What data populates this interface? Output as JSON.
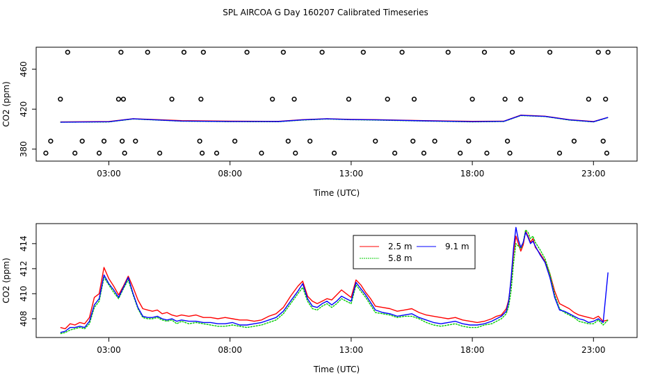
{
  "figure_title": "SPL AIRCOA G  Day 160207  Calibrated Timeseries",
  "chart_data": [
    {
      "type": "scatter+line",
      "xlabel": "Time (UTC)",
      "ylabel": "CO2 (ppm)",
      "xlim": [
        0.0,
        24.8
      ],
      "ylim": [
        368,
        482
      ],
      "x_ticks": [
        3,
        8,
        13,
        18,
        23
      ],
      "x_tick_labels": [
        "03:00",
        "08:00",
        "13:00",
        "18:00",
        "23:00"
      ],
      "y_ticks": [
        380,
        420,
        460
      ],
      "y_tick_labels": [
        "380",
        "420",
        "460"
      ],
      "calibration_points": {
        "hours": [
          0.4,
          0.6,
          1.0,
          1.3,
          1.6,
          1.9,
          2.6,
          2.8,
          3.4,
          3.5,
          3.55,
          3.6,
          3.65,
          4.1,
          4.6,
          5.1,
          5.6,
          6.1,
          6.75,
          6.8,
          6.85,
          6.9,
          7.45,
          8.2,
          8.7,
          9.3,
          9.75,
          10.2,
          10.4,
          10.65,
          10.7,
          11.3,
          11.8,
          12.3,
          12.9,
          13.5,
          14.0,
          14.5,
          14.8,
          15.1,
          15.55,
          15.6,
          16.0,
          16.45,
          17.0,
          17.5,
          17.85,
          18.0,
          18.5,
          18.6,
          19.35,
          19.45,
          19.55,
          19.65,
          20.0,
          21.2,
          21.6,
          22.2,
          22.8,
          23.2,
          23.4,
          23.5,
          23.55,
          23.6
        ],
        "values": [
          376,
          388,
          430,
          477,
          376,
          388,
          376,
          388,
          430,
          477,
          388,
          430,
          376,
          388,
          477,
          376,
          430,
          477,
          388,
          430,
          376,
          477,
          376,
          388,
          477,
          376,
          430,
          477,
          388,
          430,
          376,
          388,
          477,
          376,
          430,
          477,
          388,
          430,
          376,
          477,
          388,
          430,
          376,
          388,
          477,
          376,
          388,
          430,
          477,
          376,
          430,
          388,
          376,
          477,
          430,
          477,
          376,
          388,
          430,
          477,
          388,
          430,
          376,
          477
        ]
      },
      "series": [
        {
          "name": "2.5 m",
          "color": "#ff0000",
          "x": [
            1.0,
            3.0,
            4.0,
            6.0,
            8.0,
            10.0,
            11.0,
            12.0,
            13.0,
            14.0,
            16.0,
            18.0,
            19.3,
            20.0,
            21.0,
            22.0,
            23.0,
            23.6
          ],
          "y": [
            407.2,
            407.6,
            410.5,
            408.5,
            408.0,
            407.8,
            409.5,
            410.5,
            409.8,
            409.5,
            408.5,
            407.8,
            408.0,
            414.0,
            413.0,
            409.5,
            407.6,
            411.8
          ]
        },
        {
          "name": "5.8 m",
          "color": "#00cc00",
          "x": [
            1.0,
            3.0,
            4.0,
            6.0,
            8.0,
            10.0,
            11.0,
            12.0,
            13.0,
            14.0,
            16.0,
            18.0,
            19.3,
            20.0,
            21.0,
            22.0,
            23.0,
            23.6
          ],
          "y": [
            406.9,
            407.2,
            410.2,
            408.0,
            407.5,
            407.4,
            409.1,
            410.1,
            409.4,
            409.1,
            408.1,
            407.3,
            407.6,
            413.6,
            412.6,
            409.1,
            407.2,
            411.6
          ]
        },
        {
          "name": "9.1 m",
          "color": "#0000ff",
          "x": [
            1.0,
            3.0,
            4.0,
            6.0,
            8.0,
            10.0,
            11.0,
            12.0,
            13.0,
            14.0,
            16.0,
            18.0,
            19.3,
            20.0,
            21.0,
            22.0,
            23.0,
            23.6
          ],
          "y": [
            407.0,
            407.4,
            410.3,
            408.1,
            407.7,
            407.6,
            409.3,
            410.3,
            409.6,
            409.3,
            408.3,
            407.5,
            407.8,
            413.8,
            412.8,
            409.3,
            407.4,
            411.7
          ]
        }
      ]
    },
    {
      "type": "line",
      "xlabel": "Time (UTC)",
      "ylabel": "CO2 (ppm)",
      "xlim": [
        0.0,
        24.8
      ],
      "ylim": [
        406.5,
        415.6
      ],
      "x_ticks": [
        3,
        8,
        13,
        18,
        23
      ],
      "x_tick_labels": [
        "03:00",
        "08:00",
        "13:00",
        "18:00",
        "23:00"
      ],
      "y_ticks": [
        408,
        410,
        412,
        414
      ],
      "y_tick_labels": [
        "408",
        "410",
        "412",
        "414"
      ],
      "legend": {
        "position": "top-center",
        "entries": [
          "2.5 m",
          "9.1 m",
          "5.8 m"
        ]
      },
      "series": [
        {
          "name": "2.5 m",
          "color": "#ff0000",
          "x": [
            1.0,
            1.2,
            1.4,
            1.6,
            1.8,
            2.0,
            2.2,
            2.4,
            2.6,
            2.8,
            3.0,
            3.2,
            3.4,
            3.6,
            3.8,
            4.0,
            4.2,
            4.4,
            4.6,
            4.8,
            5.0,
            5.2,
            5.4,
            5.6,
            5.8,
            6.0,
            6.3,
            6.6,
            6.9,
            7.2,
            7.5,
            7.8,
            8.1,
            8.4,
            8.7,
            9.0,
            9.3,
            9.6,
            9.9,
            10.2,
            10.5,
            10.8,
            11.0,
            11.2,
            11.4,
            11.6,
            11.8,
            12.0,
            12.2,
            12.4,
            12.6,
            12.8,
            13.0,
            13.2,
            13.4,
            13.6,
            13.8,
            14.0,
            14.3,
            14.6,
            14.9,
            15.2,
            15.5,
            15.8,
            16.1,
            16.4,
            16.7,
            17.0,
            17.3,
            17.6,
            17.9,
            18.2,
            18.5,
            18.8,
            19.0,
            19.2,
            19.4,
            19.5,
            19.6,
            19.7,
            19.8,
            19.9,
            20.0,
            20.1,
            20.2,
            20.3,
            20.4,
            20.5,
            20.6,
            20.8,
            21.0,
            21.2,
            21.4,
            21.6,
            21.8,
            22.0,
            22.2,
            22.4,
            22.6,
            22.8,
            23.0,
            23.2,
            23.4,
            23.6
          ],
          "y": [
            407.3,
            407.2,
            407.6,
            407.5,
            407.7,
            407.6,
            408.1,
            409.7,
            410.0,
            412.1,
            411.2,
            410.6,
            409.9,
            410.6,
            411.4,
            410.5,
            409.5,
            408.8,
            408.7,
            408.6,
            408.7,
            408.4,
            408.5,
            408.3,
            408.2,
            408.3,
            408.2,
            408.3,
            408.1,
            408.1,
            408.0,
            408.1,
            408.0,
            407.9,
            407.9,
            407.8,
            407.9,
            408.2,
            408.4,
            408.9,
            409.8,
            410.6,
            411.0,
            409.8,
            409.4,
            409.2,
            409.4,
            409.6,
            409.5,
            409.9,
            410.3,
            410.0,
            409.7,
            411.1,
            410.7,
            410.1,
            409.6,
            409.0,
            408.9,
            408.8,
            408.6,
            408.7,
            408.8,
            408.5,
            408.3,
            408.2,
            408.1,
            408.0,
            408.1,
            407.9,
            407.8,
            407.7,
            407.8,
            408.0,
            408.2,
            408.3,
            408.8,
            409.5,
            411.0,
            413.2,
            414.6,
            414.0,
            413.4,
            413.9,
            415.0,
            414.6,
            414.1,
            414.4,
            413.7,
            413.2,
            412.6,
            411.6,
            410.2,
            409.2,
            409.0,
            408.8,
            408.5,
            408.3,
            408.2,
            408.1,
            408.0,
            408.2,
            407.8,
            407.9
          ]
        },
        {
          "name": "5.8 m",
          "color": "#00cc00",
          "x": [
            1.0,
            1.2,
            1.4,
            1.6,
            1.8,
            2.0,
            2.2,
            2.4,
            2.6,
            2.8,
            3.0,
            3.2,
            3.4,
            3.6,
            3.8,
            4.0,
            4.2,
            4.4,
            4.6,
            4.8,
            5.0,
            5.2,
            5.4,
            5.6,
            5.8,
            6.0,
            6.3,
            6.6,
            6.9,
            7.2,
            7.5,
            7.8,
            8.1,
            8.4,
            8.7,
            9.0,
            9.3,
            9.6,
            9.9,
            10.2,
            10.5,
            10.8,
            11.0,
            11.2,
            11.4,
            11.6,
            11.8,
            12.0,
            12.2,
            12.4,
            12.6,
            12.8,
            13.0,
            13.2,
            13.4,
            13.6,
            13.8,
            14.0,
            14.3,
            14.6,
            14.9,
            15.2,
            15.5,
            15.8,
            16.1,
            16.4,
            16.7,
            17.0,
            17.3,
            17.6,
            17.9,
            18.2,
            18.5,
            18.8,
            19.0,
            19.2,
            19.4,
            19.5,
            19.6,
            19.7,
            19.8,
            19.9,
            20.0,
            20.1,
            20.2,
            20.3,
            20.4,
            20.5,
            20.6,
            20.8,
            21.0,
            21.2,
            21.4,
            21.6,
            21.8,
            22.0,
            22.2,
            22.4,
            22.6,
            22.8,
            23.0,
            23.2,
            23.4,
            23.6
          ],
          "y": [
            406.8,
            406.9,
            407.1,
            407.2,
            407.3,
            407.2,
            407.6,
            408.9,
            409.4,
            411.3,
            410.7,
            410.1,
            409.6,
            410.4,
            411.1,
            409.9,
            408.8,
            408.1,
            408.0,
            408.0,
            408.1,
            407.9,
            407.8,
            407.9,
            407.6,
            407.8,
            407.6,
            407.7,
            407.6,
            407.5,
            407.4,
            407.4,
            407.5,
            407.4,
            407.3,
            407.4,
            407.5,
            407.7,
            407.9,
            408.4,
            409.2,
            410.0,
            410.5,
            409.4,
            408.8,
            408.7,
            409.0,
            409.2,
            408.9,
            409.2,
            409.6,
            409.4,
            409.2,
            410.7,
            410.2,
            409.7,
            409.1,
            408.5,
            408.4,
            408.3,
            408.1,
            408.2,
            408.2,
            408.0,
            407.7,
            407.5,
            407.4,
            407.5,
            407.6,
            407.4,
            407.3,
            407.3,
            407.5,
            407.6,
            407.8,
            408.0,
            408.4,
            409.0,
            410.2,
            412.4,
            414.0,
            413.8,
            413.6,
            414.1,
            415.1,
            414.9,
            414.4,
            414.6,
            414.1,
            413.5,
            412.8,
            411.6,
            409.9,
            408.8,
            408.5,
            408.3,
            408.1,
            407.8,
            407.7,
            407.6,
            407.6,
            407.9,
            407.5,
            407.9
          ]
        },
        {
          "name": "9.1 m",
          "color": "#0000ff",
          "x": [
            1.0,
            1.2,
            1.4,
            1.6,
            1.8,
            2.0,
            2.2,
            2.4,
            2.6,
            2.8,
            3.0,
            3.2,
            3.4,
            3.6,
            3.8,
            4.0,
            4.2,
            4.4,
            4.6,
            4.8,
            5.0,
            5.2,
            5.4,
            5.6,
            5.8,
            6.0,
            6.3,
            6.6,
            6.9,
            7.2,
            7.5,
            7.8,
            8.1,
            8.4,
            8.7,
            9.0,
            9.3,
            9.6,
            9.9,
            10.2,
            10.5,
            10.8,
            11.0,
            11.2,
            11.4,
            11.6,
            11.8,
            12.0,
            12.2,
            12.4,
            12.6,
            12.8,
            13.0,
            13.2,
            13.4,
            13.6,
            13.8,
            14.0,
            14.3,
            14.6,
            14.9,
            15.2,
            15.5,
            15.8,
            16.1,
            16.4,
            16.7,
            17.0,
            17.3,
            17.6,
            17.9,
            18.2,
            18.5,
            18.8,
            19.0,
            19.2,
            19.4,
            19.5,
            19.6,
            19.7,
            19.8,
            19.9,
            20.0,
            20.1,
            20.2,
            20.3,
            20.4,
            20.5,
            20.6,
            20.8,
            21.0,
            21.2,
            21.4,
            21.6,
            21.8,
            22.0,
            22.2,
            22.4,
            22.6,
            22.8,
            23.0,
            23.2,
            23.4,
            23.6
          ],
          "y": [
            406.9,
            407.0,
            407.3,
            407.3,
            407.4,
            407.3,
            407.8,
            409.1,
            409.6,
            411.5,
            410.8,
            410.3,
            409.7,
            410.5,
            411.3,
            410.0,
            408.9,
            408.2,
            408.1,
            408.1,
            408.2,
            408.0,
            407.9,
            408.0,
            407.8,
            407.9,
            407.8,
            407.8,
            407.7,
            407.7,
            407.6,
            407.6,
            407.7,
            407.5,
            407.5,
            407.6,
            407.7,
            407.9,
            408.1,
            408.6,
            409.4,
            410.2,
            410.8,
            409.6,
            409.0,
            408.9,
            409.2,
            409.4,
            409.1,
            409.4,
            409.8,
            409.6,
            409.4,
            410.9,
            410.4,
            409.9,
            409.3,
            408.7,
            408.5,
            408.4,
            408.2,
            408.3,
            408.4,
            408.1,
            407.9,
            407.7,
            407.6,
            407.7,
            407.8,
            407.6,
            407.5,
            407.5,
            407.6,
            407.8,
            408.0,
            408.2,
            408.6,
            409.4,
            411.2,
            413.6,
            415.3,
            414.3,
            413.7,
            414.1,
            414.9,
            414.5,
            414.0,
            414.2,
            413.8,
            413.1,
            412.5,
            411.3,
            409.7,
            408.7,
            408.6,
            408.4,
            408.2,
            408.0,
            407.9,
            407.7,
            407.8,
            408.0,
            407.7,
            411.7
          ]
        }
      ]
    }
  ]
}
